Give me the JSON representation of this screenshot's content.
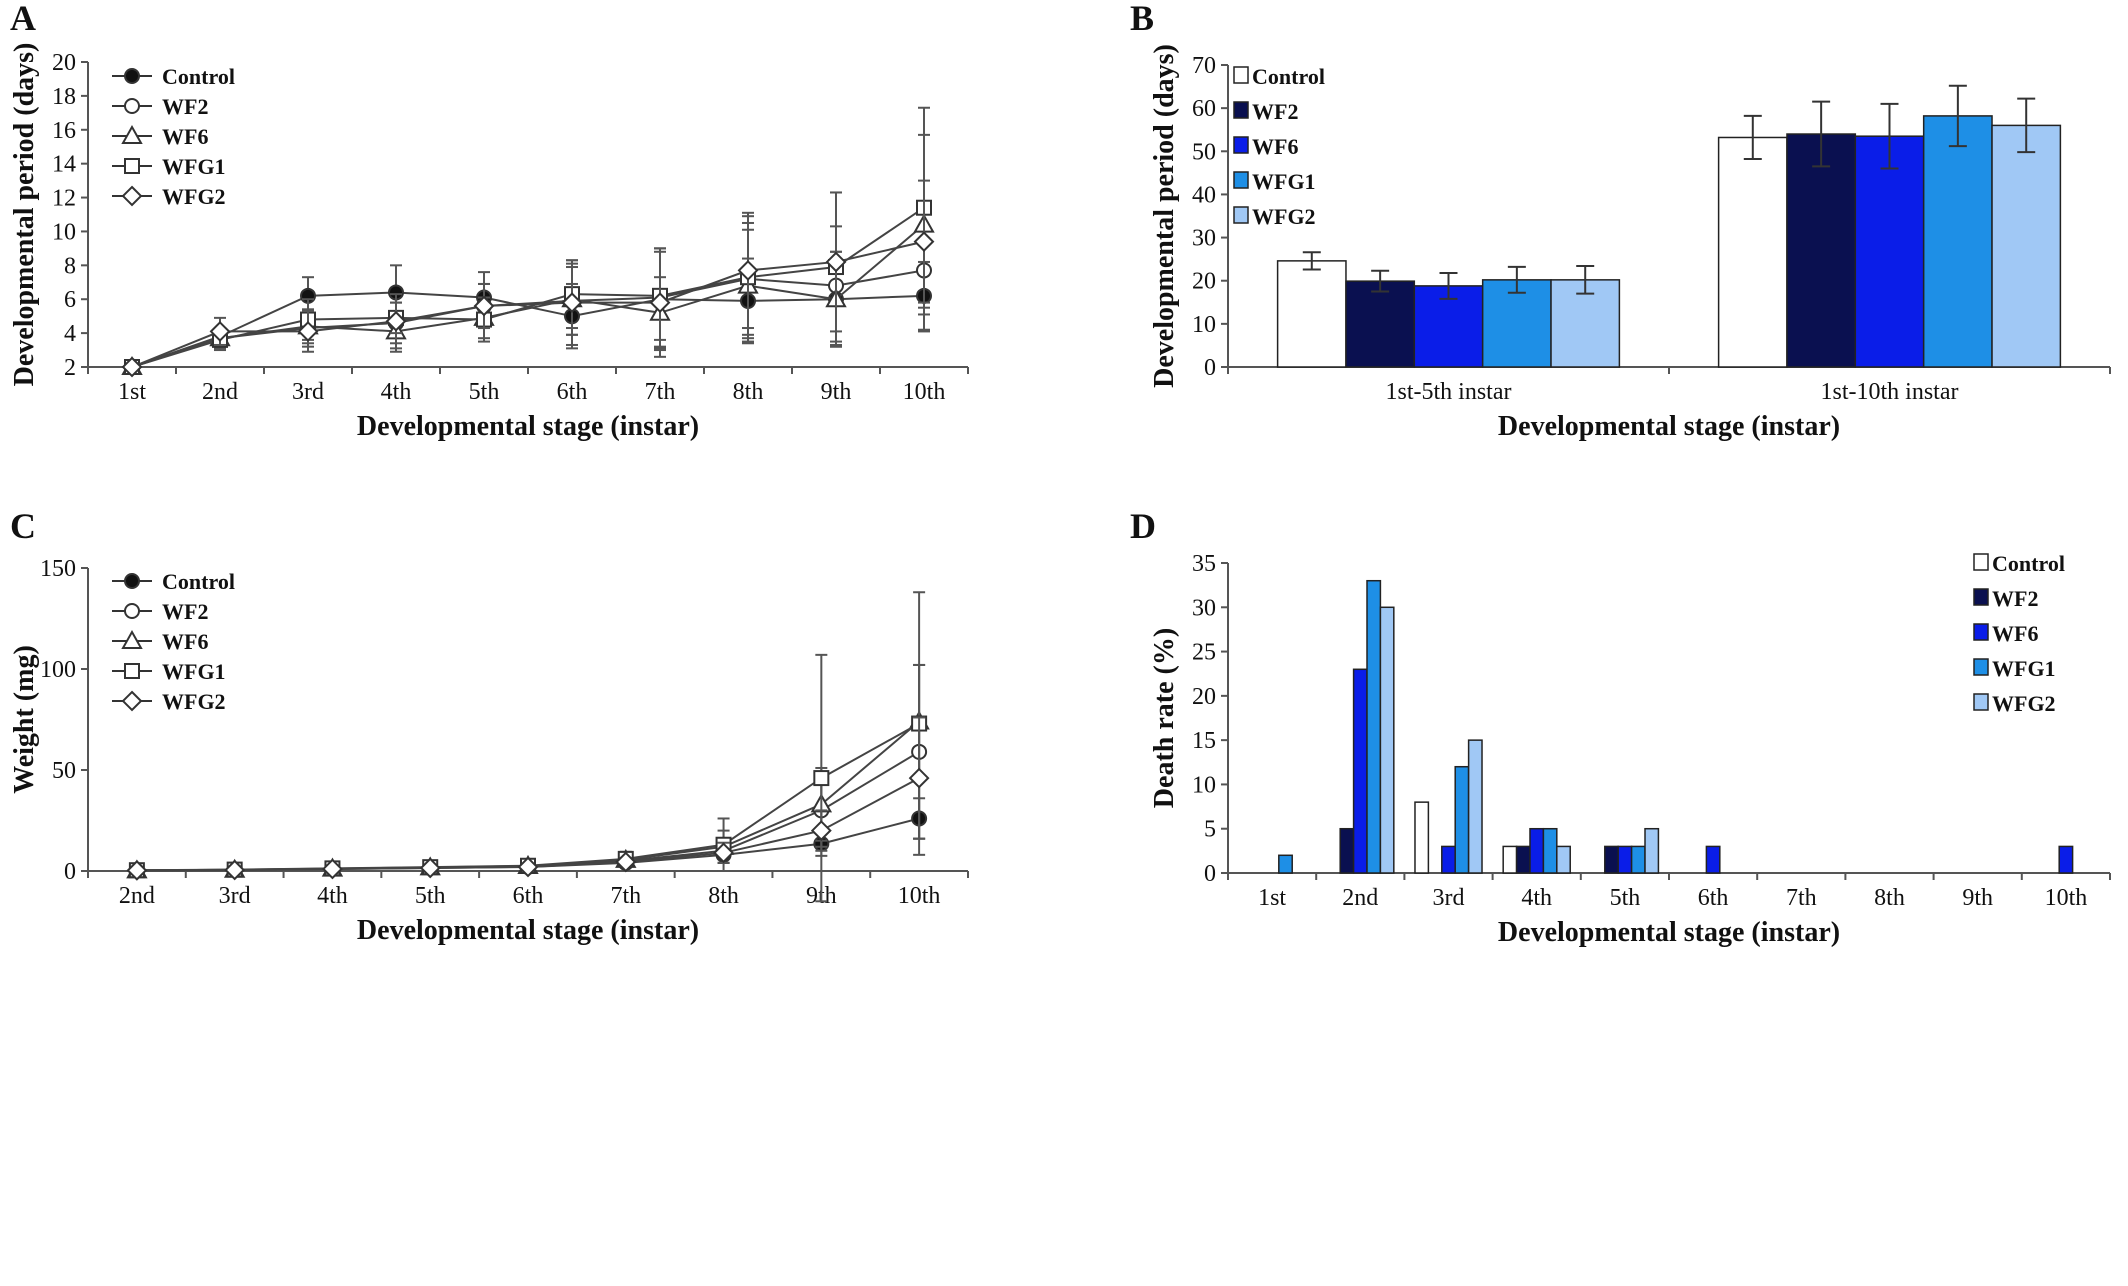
{
  "chart_data": [
    {
      "panel": "A",
      "type": "line",
      "xlabel": "Developmental stage (instar)",
      "ylabel": "Developmental period (days)",
      "categories": [
        "1st",
        "2nd",
        "3rd",
        "4th",
        "5th",
        "6th",
        "7th",
        "8th",
        "9th",
        "10th"
      ],
      "ylim": [
        2,
        20
      ],
      "yticks": [
        2,
        4,
        6,
        8,
        10,
        12,
        14,
        16,
        18,
        20
      ],
      "legend_position": "top-left",
      "series": [
        {
          "name": "Control",
          "marker": "filled-circle",
          "values": [
            2.0,
            3.8,
            6.2,
            6.4,
            6.1,
            5.0,
            6.0,
            5.9,
            6.0,
            6.2
          ],
          "errors": [
            0.1,
            0.5,
            1.1,
            1.6,
            1.5,
            1.9,
            3.0,
            2.5,
            2.8,
            2.0
          ]
        },
        {
          "name": "WF2",
          "marker": "open-circle",
          "values": [
            2.0,
            3.7,
            4.3,
            4.6,
            5.6,
            5.9,
            6.1,
            7.2,
            6.8,
            7.7
          ],
          "errors": [
            0.1,
            0.6,
            1.1,
            1.2,
            1.3,
            2.0,
            2.9,
            3.3,
            3.5,
            3.6
          ]
        },
        {
          "name": "WF6",
          "marker": "open-triangle",
          "values": [
            2.0,
            3.7,
            4.4,
            4.1,
            4.9,
            6.0,
            5.2,
            6.8,
            6.0,
            10.4
          ],
          "errors": [
            0.1,
            0.5,
            1.0,
            1.2,
            1.2,
            2.1,
            2.1,
            3.3,
            2.8,
            5.3
          ]
        },
        {
          "name": "WFG1",
          "marker": "open-square",
          "values": [
            2.0,
            3.6,
            4.8,
            4.9,
            4.8,
            6.3,
            6.2,
            7.3,
            7.9,
            11.4
          ],
          "errors": [
            0.1,
            0.6,
            1.2,
            0.9,
            1.3,
            2.0,
            2.6,
            3.6,
            4.4,
            5.9
          ]
        },
        {
          "name": "WFG2",
          "marker": "open-diamond",
          "values": [
            2.0,
            4.1,
            4.1,
            4.7,
            5.6,
            5.8,
            5.8,
            7.7,
            8.2,
            9.4
          ],
          "errors": [
            0.1,
            0.8,
            1.2,
            1.6,
            1.3,
            2.5,
            3.2,
            3.4,
            4.1,
            3.6
          ]
        }
      ]
    },
    {
      "panel": "B",
      "type": "bar",
      "xlabel": "Developmental stage (instar)",
      "ylabel": "Developmental period (days)",
      "categories": [
        "1st-5th instar",
        "1st-10th instar"
      ],
      "ylim": [
        0,
        70
      ],
      "yticks": [
        0,
        10,
        20,
        30,
        40,
        50,
        60,
        70
      ],
      "legend_position": "top-left",
      "series": [
        {
          "name": "Control",
          "color": "#ffffff",
          "values": [
            24.6,
            53.2
          ],
          "errors": [
            2.0,
            5.0
          ]
        },
        {
          "name": "WF2",
          "color": "#0a1050",
          "values": [
            19.9,
            54.0
          ],
          "errors": [
            2.4,
            7.5
          ]
        },
        {
          "name": "WF6",
          "color": "#0a1de8",
          "values": [
            18.8,
            53.5
          ],
          "errors": [
            3.0,
            7.5
          ]
        },
        {
          "name": "WFG1",
          "color": "#1e8fe6",
          "values": [
            20.2,
            58.2
          ],
          "errors": [
            3.0,
            7.0
          ]
        },
        {
          "name": "WFG2",
          "color": "#a0c8f5",
          "values": [
            20.2,
            56.0
          ],
          "errors": [
            3.2,
            6.2
          ]
        }
      ]
    },
    {
      "panel": "C",
      "type": "line",
      "xlabel": "Developmental stage (instar)",
      "ylabel": "Weight (mg)",
      "categories": [
        "2nd",
        "3rd",
        "4th",
        "5th",
        "6th",
        "7th",
        "8th",
        "9th",
        "10th"
      ],
      "ylim": [
        0,
        150
      ],
      "yticks": [
        0,
        50,
        100,
        150
      ],
      "legend_position": "top-left",
      "series": [
        {
          "name": "Control",
          "marker": "filled-circle",
          "values": [
            0.3,
            0.5,
            1.0,
            1.5,
            2.0,
            4.0,
            8.0,
            13.5,
            26.0
          ],
          "errors": [
            0.1,
            0.2,
            0.3,
            0.5,
            0.8,
            2.0,
            4.0,
            6.0,
            10.0
          ]
        },
        {
          "name": "WF2",
          "marker": "open-circle",
          "values": [
            0.3,
            0.6,
            1.1,
            1.6,
            2.2,
            5.0,
            10.0,
            30.0,
            59.0
          ],
          "errors": [
            0.1,
            0.2,
            0.4,
            0.5,
            0.9,
            2.5,
            6.0,
            18.0,
            43.0
          ]
        },
        {
          "name": "WF6",
          "marker": "open-triangle",
          "values": [
            0.3,
            0.6,
            1.2,
            1.8,
            2.5,
            5.5,
            12.0,
            33.0,
            74.0
          ],
          "errors": [
            0.1,
            0.2,
            0.4,
            0.6,
            1.0,
            3.0,
            8.0,
            18.0,
            28.0
          ]
        },
        {
          "name": "WFG1",
          "marker": "open-square",
          "values": [
            0.4,
            0.7,
            1.3,
            1.9,
            2.6,
            6.0,
            13.0,
            46.0,
            73.0
          ],
          "errors": [
            0.1,
            0.3,
            0.4,
            0.6,
            1.0,
            3.5,
            13.0,
            61.0,
            65.0
          ]
        },
        {
          "name": "WFG2",
          "marker": "open-diamond",
          "values": [
            0.3,
            0.5,
            1.0,
            1.5,
            2.0,
            4.5,
            9.0,
            20.0,
            46.0
          ],
          "errors": [
            0.1,
            0.2,
            0.3,
            0.5,
            0.8,
            2.0,
            5.0,
            10.0,
            30.0
          ]
        }
      ]
    },
    {
      "panel": "D",
      "type": "bar",
      "xlabel": "Developmental stage (instar)",
      "ylabel": "Death rate (%)",
      "categories": [
        "1st",
        "2nd",
        "3rd",
        "4th",
        "5th",
        "6th",
        "7th",
        "8th",
        "9th",
        "10th"
      ],
      "ylim": [
        0,
        35
      ],
      "yticks": [
        0,
        5,
        10,
        15,
        20,
        25,
        30,
        35
      ],
      "legend_position": "top-right",
      "series": [
        {
          "name": "Control",
          "color": "#ffffff",
          "values": [
            0,
            0,
            8,
            3,
            0,
            0,
            0,
            0,
            0,
            0
          ]
        },
        {
          "name": "WF2",
          "color": "#0a1050",
          "values": [
            0,
            5,
            0,
            3,
            3,
            0,
            0,
            0,
            0,
            0
          ]
        },
        {
          "name": "WF6",
          "color": "#0a1de8",
          "values": [
            0,
            23,
            3,
            5,
            3,
            3,
            0,
            0,
            0,
            3
          ]
        },
        {
          "name": "WFG1",
          "color": "#1e8fe6",
          "values": [
            2,
            33,
            12,
            5,
            3,
            0,
            0,
            0,
            0,
            0
          ]
        },
        {
          "name": "WFG2",
          "color": "#a0c8f5",
          "values": [
            0,
            30,
            15,
            3,
            5,
            0,
            0,
            0,
            0,
            0
          ]
        }
      ]
    }
  ]
}
